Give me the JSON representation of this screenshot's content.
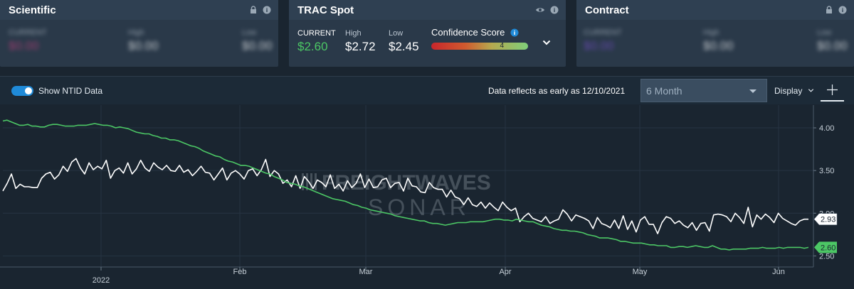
{
  "cards": {
    "scientific": {
      "title": "Scientific",
      "current_label": "CURRENT",
      "current_value": "$0.00",
      "high_label": "High",
      "high_value": "$0.00",
      "low_label": "Low",
      "low_value": "$0.00"
    },
    "trac": {
      "title": "TRAC Spot",
      "current_label": "CURRENT",
      "current_value": "$2.60",
      "high_label": "High",
      "high_value": "$2.72",
      "low_label": "Low",
      "low_value": "$2.45",
      "confidence_label": "Confidence Score",
      "confidence_value": "4"
    },
    "contract": {
      "title": "Contract",
      "current_label": "CURRENT",
      "current_value": "$0.00",
      "high_label": "High",
      "high_value": "$0.00",
      "low_label": "Low",
      "low_value": "$0.00"
    }
  },
  "toolbar": {
    "toggle_label": "Show NTID Data",
    "reflect_text": "Data reflects as early as 12/10/2021",
    "range_value": "6 Month",
    "display_label": "Display"
  },
  "colors": {
    "accent": "#1f8ad8",
    "green": "#4cc765",
    "white_series": "#ffffff",
    "bg": "#1a2530"
  },
  "chart_data": {
    "type": "line",
    "watermark": [
      "FREIGHTWAVES",
      "SONAR"
    ],
    "x_ticks": [
      "2022",
      "Feb",
      "Mar",
      "Apr",
      "May",
      "Jun"
    ],
    "y_ticks": [
      "4.00",
      "3.50",
      "3.00",
      "2.50"
    ],
    "ylim": [
      2.42,
      4.2
    ],
    "series": [
      {
        "color": "#ffffff",
        "last_label": "2.93",
        "values": [
          3.26,
          3.35,
          3.46,
          3.29,
          3.34,
          3.31,
          3.31,
          3.3,
          3.3,
          3.41,
          3.46,
          3.48,
          3.4,
          3.45,
          3.55,
          3.49,
          3.6,
          3.64,
          3.53,
          3.46,
          3.59,
          3.51,
          3.55,
          3.52,
          3.62,
          3.41,
          3.5,
          3.53,
          3.47,
          3.59,
          3.46,
          3.52,
          3.62,
          3.53,
          3.49,
          3.59,
          3.54,
          3.51,
          3.56,
          3.5,
          3.49,
          3.56,
          3.48,
          3.51,
          3.44,
          3.49,
          3.55,
          3.48,
          3.47,
          3.39,
          3.46,
          3.53,
          3.39,
          3.47,
          3.5,
          3.46,
          3.4,
          3.5,
          3.52,
          3.44,
          3.51,
          3.63,
          3.43,
          3.5,
          3.46,
          3.35,
          3.39,
          3.31,
          3.44,
          3.29,
          3.43,
          3.37,
          3.29,
          3.39,
          3.36,
          3.31,
          3.45,
          3.29,
          3.34,
          3.26,
          3.38,
          3.3,
          3.35,
          3.46,
          3.3,
          3.4,
          3.3,
          3.31,
          3.39,
          3.41,
          3.3,
          3.35,
          3.36,
          3.26,
          3.41,
          3.32,
          3.31,
          3.25,
          3.24,
          3.36,
          3.3,
          3.28,
          3.28,
          3.19,
          3.27,
          3.19,
          3.17,
          3.1,
          3.18,
          3.1,
          3.08,
          3.13,
          3.06,
          3.12,
          3.07,
          3.03,
          3.13,
          3.07,
          3.03,
          3.06,
          2.9,
          2.96,
          3.0,
          2.94,
          2.92,
          2.9,
          2.96,
          2.88,
          2.91,
          2.93,
          3.04,
          2.99,
          2.91,
          2.98,
          2.96,
          2.94,
          2.91,
          2.82,
          2.95,
          2.88,
          2.86,
          2.83,
          2.92,
          2.82,
          2.97,
          2.81,
          2.91,
          2.78,
          2.92,
          2.96,
          2.87,
          2.87,
          2.76,
          2.89,
          2.96,
          2.94,
          2.88,
          2.91,
          2.86,
          2.83,
          2.89,
          2.8,
          2.88,
          2.89,
          2.79,
          2.98,
          2.99,
          2.98,
          2.96,
          2.9,
          3.0,
          2.95,
          2.88,
          3.07,
          2.84,
          2.98,
          2.93,
          2.99,
          2.95,
          2.89,
          3.0,
          2.94,
          2.91,
          2.88,
          2.86,
          2.91,
          2.93,
          2.93
        ]
      },
      {
        "color": "#4cc765",
        "last_label": "2.60",
        "values": [
          4.08,
          4.09,
          4.07,
          4.05,
          4.03,
          4.03,
          4.04,
          4.02,
          4.02,
          4.01,
          4.01,
          4.03,
          4.04,
          4.04,
          4.03,
          4.02,
          4.02,
          4.02,
          4.03,
          4.03,
          4.03,
          4.04,
          4.05,
          4.04,
          4.03,
          4.03,
          4.02,
          4.0,
          4.01,
          4.0,
          3.99,
          3.97,
          3.95,
          3.94,
          3.93,
          3.93,
          3.91,
          3.9,
          3.88,
          3.88,
          3.86,
          3.86,
          3.85,
          3.83,
          3.81,
          3.79,
          3.78,
          3.76,
          3.73,
          3.71,
          3.69,
          3.67,
          3.66,
          3.63,
          3.61,
          3.6,
          3.58,
          3.56,
          3.56,
          3.55,
          3.53,
          3.51,
          3.49,
          3.47,
          3.46,
          3.43,
          3.41,
          3.39,
          3.36,
          3.35,
          3.34,
          3.32,
          3.31,
          3.29,
          3.27,
          3.25,
          3.23,
          3.21,
          3.19,
          3.17,
          3.16,
          3.15,
          3.14,
          3.12,
          3.1,
          3.09,
          3.07,
          3.06,
          3.04,
          3.03,
          3.02,
          3.01,
          3.0,
          2.99,
          2.97,
          2.96,
          2.95,
          2.94,
          2.93,
          2.92,
          2.91,
          2.91,
          2.89,
          2.88,
          2.88,
          2.87,
          2.86,
          2.87,
          2.88,
          2.89,
          2.89,
          2.89,
          2.9,
          2.9,
          2.9,
          2.9,
          2.91,
          2.92,
          2.93,
          2.93,
          2.92,
          2.92,
          2.91,
          2.93,
          2.92,
          2.91,
          2.9,
          2.9,
          2.88,
          2.86,
          2.85,
          2.84,
          2.82,
          2.81,
          2.8,
          2.8,
          2.79,
          2.79,
          2.78,
          2.77,
          2.75,
          2.74,
          2.73,
          2.71,
          2.71,
          2.71,
          2.7,
          2.69,
          2.67,
          2.67,
          2.66,
          2.65,
          2.65,
          2.65,
          2.64,
          2.63,
          2.63,
          2.62,
          2.62,
          2.62,
          2.6,
          2.6,
          2.61,
          2.61,
          2.6,
          2.61,
          2.62,
          2.61,
          2.6,
          2.6,
          2.62,
          2.6,
          2.58,
          2.58,
          2.57,
          2.58,
          2.58,
          2.58,
          2.58,
          2.59,
          2.59,
          2.59,
          2.6,
          2.59,
          2.59,
          2.59,
          2.6,
          2.59,
          2.6,
          2.6,
          2.6,
          2.6,
          2.59,
          2.6
        ]
      }
    ]
  }
}
